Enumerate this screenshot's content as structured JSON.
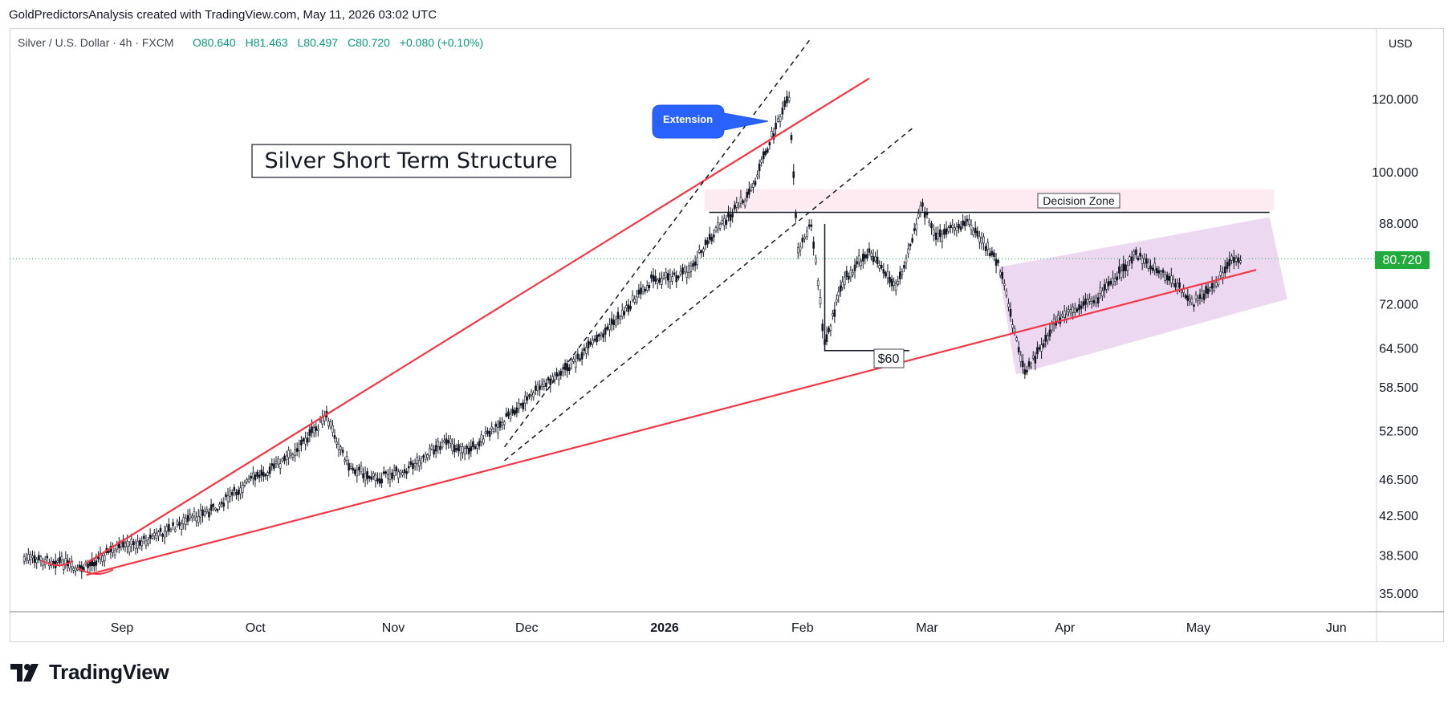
{
  "header": {
    "caption": "GoldPredictorsAnalysis created with TradingView.com, May 11, 2026 03:02 UTC"
  },
  "footer": {
    "brand": "TradingView"
  },
  "chart_data": {
    "type": "candlestick",
    "legend": {
      "symbol": "Silver / U.S. Dollar · 4h · FXCM",
      "ohlc": [
        {
          "label": "O",
          "value": "80.640"
        },
        {
          "label": "H",
          "value": "81.463"
        },
        {
          "label": "L",
          "value": "80.497"
        },
        {
          "label": "C",
          "value": "80.720"
        }
      ],
      "change": "+0.080 (+0.10%)"
    },
    "currency": "USD",
    "y_scale": "log",
    "ylim": [
      32.5,
      150
    ],
    "y_ticks": [
      "120.000",
      "100.000",
      "88.000",
      "72.000",
      "64.500",
      "58.500",
      "52.500",
      "46.500",
      "42.500",
      "38.500",
      "35.000"
    ],
    "x_ticks": [
      "Sep",
      "Oct",
      "Nov",
      "Dec",
      "2026",
      "Feb",
      "Mar",
      "Apr",
      "May",
      "Jun"
    ],
    "last_price": {
      "value": 80.72,
      "label": "80.720"
    },
    "title_box": "Silver Short Term Structure",
    "annotations": {
      "extension": "Extension",
      "decision_zone": "Decision Zone",
      "support_60": "$60"
    },
    "price_path": [
      {
        "x": "Aug 10",
        "y": 38.2
      },
      {
        "x": "Aug 18",
        "y": 38.0
      },
      {
        "x": "Aug 22",
        "y": 37.0
      },
      {
        "x": "Aug 29",
        "y": 38.9
      },
      {
        "x": "Sep 5",
        "y": 39.8
      },
      {
        "x": "Sep 12",
        "y": 41.2
      },
      {
        "x": "Sep 22",
        "y": 43.4
      },
      {
        "x": "Sep 30",
        "y": 46.5
      },
      {
        "x": "Oct 8",
        "y": 49.0
      },
      {
        "x": "Oct 17",
        "y": 54.3
      },
      {
        "x": "Oct 22",
        "y": 48.2
      },
      {
        "x": "Oct 28",
        "y": 46.6
      },
      {
        "x": "Nov 4",
        "y": 47.8
      },
      {
        "x": "Nov 12",
        "y": 51.0
      },
      {
        "x": "Nov 18",
        "y": 50.1
      },
      {
        "x": "Nov 25",
        "y": 53.4
      },
      {
        "x": "Dec 3",
        "y": 58.0
      },
      {
        "x": "Dec 12",
        "y": 62.5
      },
      {
        "x": "Dec 22",
        "y": 70.0
      },
      {
        "x": "Dec 29",
        "y": 76.5
      },
      {
        "x": "Jan 6",
        "y": 78.0
      },
      {
        "x": "Jan 13",
        "y": 87.0
      },
      {
        "x": "Jan 20",
        "y": 94.5
      },
      {
        "x": "Jan 26",
        "y": 112.0
      },
      {
        "x": "Jan 29",
        "y": 121.0
      },
      {
        "x": "Jan 31",
        "y": 82.0
      },
      {
        "x": "Feb 3",
        "y": 88.5
      },
      {
        "x": "Feb 6",
        "y": 65.0
      },
      {
        "x": "Feb 10",
        "y": 76.0
      },
      {
        "x": "Feb 16",
        "y": 82.5
      },
      {
        "x": "Feb 22",
        "y": 75.0
      },
      {
        "x": "Feb 28",
        "y": 92.0
      },
      {
        "x": "Mar 3",
        "y": 85.0
      },
      {
        "x": "Mar 10",
        "y": 88.5
      },
      {
        "x": "Mar 17",
        "y": 80.0
      },
      {
        "x": "Mar 23",
        "y": 60.5
      },
      {
        "x": "Mar 30",
        "y": 69.0
      },
      {
        "x": "Apr 8",
        "y": 73.0
      },
      {
        "x": "Apr 17",
        "y": 81.5
      },
      {
        "x": "Apr 24",
        "y": 77.0
      },
      {
        "x": "Apr 30",
        "y": 72.5
      },
      {
        "x": "May 5",
        "y": 75.5
      },
      {
        "x": "May 8",
        "y": 80.5
      },
      {
        "x": "May 11",
        "y": 80.72
      }
    ]
  }
}
